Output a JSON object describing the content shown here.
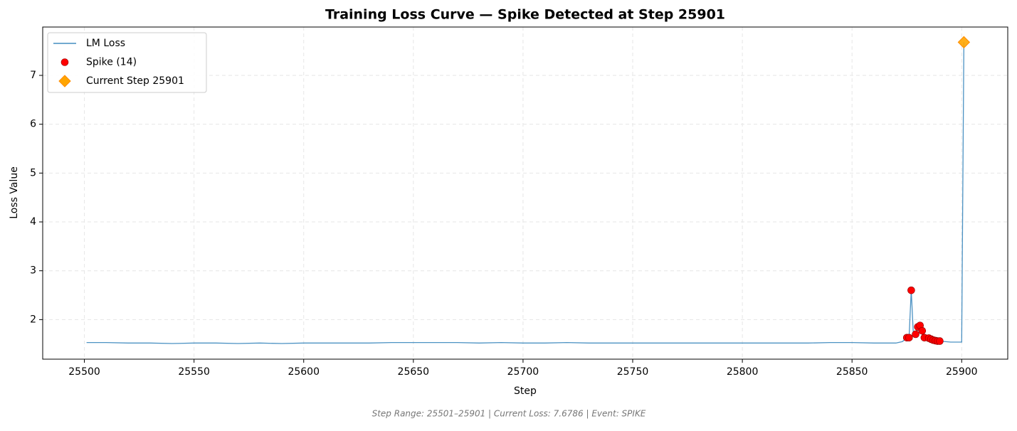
{
  "chart_data": {
    "type": "line",
    "title": "Training Loss Curve — Spike Detected at Step 25901",
    "xlabel": "Step",
    "ylabel": "Loss Value",
    "footer": "Step Range: 25501–25901 | Current Loss: 7.6786 | Event: SPIKE",
    "xlim": [
      25481,
      25921
    ],
    "ylim": [
      1.19,
      7.99
    ],
    "xticks": [
      25500,
      25550,
      25600,
      25650,
      25700,
      25750,
      25800,
      25850,
      25900
    ],
    "yticks": [
      2,
      3,
      4,
      5,
      6,
      7
    ],
    "grid": true,
    "legend": "upper-left",
    "series": [
      {
        "name": "LM Loss",
        "color": "#1f77b4",
        "kind": "line",
        "x": [
          25501,
          25510,
          25520,
          25530,
          25540,
          25550,
          25560,
          25570,
          25580,
          25590,
          25600,
          25610,
          25620,
          25630,
          25640,
          25650,
          25660,
          25670,
          25680,
          25690,
          25700,
          25710,
          25720,
          25730,
          25740,
          25750,
          25760,
          25770,
          25780,
          25790,
          25800,
          25810,
          25820,
          25830,
          25840,
          25850,
          25860,
          25870,
          25873,
          25875,
          25876,
          25877,
          25878,
          25879,
          25880,
          25881,
          25882,
          25883,
          25884,
          25885,
          25886,
          25887,
          25888,
          25889,
          25890,
          25895,
          25900,
          25901
        ],
        "values": [
          1.53,
          1.53,
          1.52,
          1.52,
          1.51,
          1.52,
          1.52,
          1.51,
          1.52,
          1.51,
          1.52,
          1.52,
          1.52,
          1.52,
          1.53,
          1.53,
          1.53,
          1.53,
          1.52,
          1.53,
          1.52,
          1.52,
          1.53,
          1.52,
          1.52,
          1.52,
          1.52,
          1.52,
          1.52,
          1.52,
          1.52,
          1.52,
          1.52,
          1.52,
          1.53,
          1.53,
          1.52,
          1.52,
          1.55,
          1.63,
          1.63,
          2.6,
          1.66,
          1.7,
          1.85,
          1.88,
          1.77,
          1.63,
          1.62,
          1.62,
          1.6,
          1.58,
          1.57,
          1.56,
          1.56,
          1.54,
          1.54,
          7.6786
        ]
      },
      {
        "name": "Spike (14)",
        "color": "#ff0000",
        "kind": "scatter",
        "x": [
          25875,
          25876,
          25877,
          25879,
          25880,
          25881,
          25882,
          25883,
          25885,
          25886,
          25887,
          25888,
          25889,
          25890
        ],
        "values": [
          1.63,
          1.63,
          2.6,
          1.7,
          1.85,
          1.88,
          1.77,
          1.63,
          1.62,
          1.6,
          1.58,
          1.57,
          1.56,
          1.56
        ]
      },
      {
        "name": "Current Step 25901",
        "color": "#ffa500",
        "kind": "diamond",
        "x": [
          25901
        ],
        "values": [
          7.6786
        ]
      }
    ]
  }
}
